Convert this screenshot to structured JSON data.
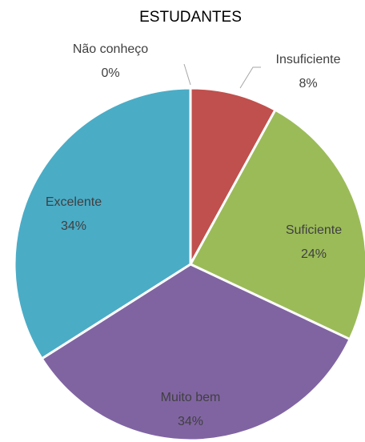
{
  "chart_data": {
    "type": "pie",
    "title": "ESTUDANTES",
    "categories": [
      "Insuficiente",
      "Suficiente",
      "Muito bem",
      "Excelente",
      "Não conheço"
    ],
    "values": [
      8,
      24,
      34,
      34,
      0
    ],
    "value_labels": [
      "8%",
      "24%",
      "34%",
      "34%",
      "0%"
    ],
    "colors": [
      "#c0504d",
      "#9bbb59",
      "#8064a2",
      "#4bacc6",
      "#f79646"
    ]
  }
}
